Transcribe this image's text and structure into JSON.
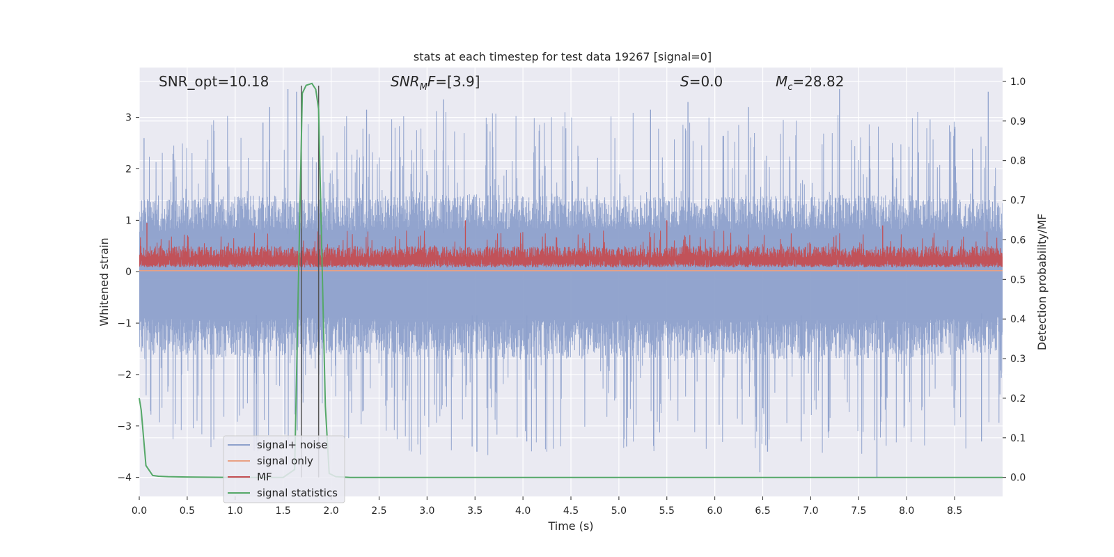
{
  "chart_data": {
    "type": "line",
    "title": "stats at each timestep for test data 19267 [signal=0]",
    "xlabel": "Time (s)",
    "ylabel": "Whitened strain",
    "y2label": "Detection probability/MF",
    "xlim": [
      0.0,
      9.0
    ],
    "ylim": [
      -4.37,
      3.97
    ],
    "y2lim": [
      -0.048,
      1.035
    ],
    "xticks": [
      0.0,
      0.5,
      1.0,
      1.5,
      2.0,
      2.5,
      3.0,
      3.5,
      4.0,
      4.5,
      5.0,
      5.5,
      6.0,
      6.5,
      7.0,
      7.5,
      8.0,
      8.5
    ],
    "xtick_labels": [
      "0.0",
      "0.5",
      "1.0",
      "1.5",
      "2.0",
      "2.5",
      "3.0",
      "3.5",
      "4.0",
      "4.5",
      "5.0",
      "5.5",
      "6.0",
      "6.5",
      "7.0",
      "7.5",
      "8.0",
      "8.5"
    ],
    "yticks": [
      -4,
      -3,
      -2,
      -1,
      0,
      1,
      2,
      3
    ],
    "ytick_labels": [
      "−4",
      "−3",
      "−2",
      "−1",
      "0",
      "1",
      "2",
      "3"
    ],
    "y2ticks": [
      0.0,
      0.1,
      0.2,
      0.3,
      0.4,
      0.5,
      0.6,
      0.7,
      0.8,
      0.9,
      1.0
    ],
    "y2tick_labels": [
      "0.0",
      "0.1",
      "0.2",
      "0.3",
      "0.4",
      "0.5",
      "0.6",
      "0.7",
      "0.8",
      "0.9",
      "1.0"
    ],
    "grid": true,
    "legend_position": "lower-left",
    "annotations": [
      {
        "id": "snr-opt",
        "text": "SNR_opt=10.18"
      },
      {
        "id": "snr-mf",
        "text": "=[3.9]",
        "math_main": "SNR",
        "math_sub": "M",
        "math_tail": "F"
      },
      {
        "id": "s-value",
        "text": "=0.0",
        "math_main": "S"
      },
      {
        "id": "mc-value",
        "text": "=28.82",
        "math_main": "M",
        "math_sub": "c"
      }
    ],
    "vlines": [
      1.69,
      1.87
    ],
    "series": [
      {
        "name": "signal+ noise",
        "color": "#8da0cb",
        "axis": "left",
        "style": "dense-noise",
        "upper_envelope": {
          "x": [
            0.0,
            1.0,
            2.0,
            3.0,
            4.0,
            5.0,
            6.0,
            7.0,
            8.0,
            9.0
          ],
          "y": [
            1.4,
            1.5,
            1.45,
            1.5,
            1.5,
            1.5,
            1.45,
            1.5,
            1.5,
            1.4
          ]
        },
        "lower_envelope": {
          "x": [
            0.0,
            1.0,
            2.0,
            3.0,
            4.0,
            5.0,
            6.0,
            7.0,
            8.0,
            9.0
          ],
          "y": [
            -1.6,
            -1.7,
            -1.6,
            -1.7,
            -1.7,
            -1.7,
            -1.7,
            -1.7,
            -1.7,
            -1.6
          ]
        },
        "peaks": [
          {
            "x": 0.05,
            "y": 2.6
          },
          {
            "x": 1.29,
            "y": 2.9
          },
          {
            "x": 1.36,
            "y": 3.2
          },
          {
            "x": 1.55,
            "y": 3.55
          },
          {
            "x": 1.64,
            "y": 3.5
          },
          {
            "x": 2.37,
            "y": 3.15
          },
          {
            "x": 3.17,
            "y": 3.35
          },
          {
            "x": 5.33,
            "y": 3.15
          },
          {
            "x": 5.72,
            "y": 3.3
          },
          {
            "x": 6.35,
            "y": 3.2
          },
          {
            "x": 7.3,
            "y": 3.55
          },
          {
            "x": 8.85,
            "y": 3.5
          },
          {
            "x": 1.22,
            "y": -3.4
          },
          {
            "x": 3.47,
            "y": -3.4
          },
          {
            "x": 3.52,
            "y": -3.5
          },
          {
            "x": 4.04,
            "y": -3.3
          },
          {
            "x": 5.08,
            "y": -3.4
          },
          {
            "x": 6.47,
            "y": -3.9
          },
          {
            "x": 6.55,
            "y": -3.5
          },
          {
            "x": 6.9,
            "y": -3.3
          },
          {
            "x": 7.69,
            "y": -4.0
          },
          {
            "x": 8.78,
            "y": -3.3
          }
        ]
      },
      {
        "name": "signal only",
        "color": "#e9a083",
        "axis": "left",
        "x": [
          0.0,
          9.0
        ],
        "y": [
          0.02,
          0.02
        ]
      },
      {
        "name": "MF",
        "color": "#c44e52",
        "axis": "left",
        "style": "dense-noise",
        "upper_envelope": {
          "x": [
            0.0,
            1.0,
            2.0,
            3.0,
            4.0,
            5.0,
            6.0,
            7.0,
            8.0,
            9.0
          ],
          "y": [
            0.5,
            0.5,
            0.5,
            0.5,
            0.5,
            0.5,
            0.5,
            0.5,
            0.5,
            0.5
          ]
        },
        "lower_envelope": {
          "x": [
            0.0,
            1.0,
            2.0,
            3.0,
            4.0,
            5.0,
            6.0,
            7.0,
            8.0,
            9.0
          ],
          "y": [
            0.15,
            0.15,
            0.15,
            0.15,
            0.15,
            0.15,
            0.15,
            0.15,
            0.15,
            0.15
          ]
        },
        "peaks": [
          {
            "x": 0.08,
            "y": 0.95
          },
          {
            "x": 3.4,
            "y": 1.0
          },
          {
            "x": 5.5,
            "y": 1.0
          },
          {
            "x": 7.75,
            "y": 0.9
          }
        ]
      },
      {
        "name": "signal statistics",
        "color": "#55a868",
        "axis": "right",
        "x": [
          0.0,
          0.02,
          0.07,
          0.14,
          0.2,
          0.3,
          0.5,
          1.0,
          1.5,
          1.62,
          1.66,
          1.7,
          1.74,
          1.8,
          1.84,
          1.87,
          1.9,
          1.94,
          1.98,
          2.05,
          2.2,
          9.0
        ],
        "y": [
          0.2,
          0.17,
          0.03,
          0.005,
          0.003,
          0.002,
          0.001,
          0.0,
          0.0,
          0.02,
          0.5,
          0.97,
          0.99,
          0.995,
          0.98,
          0.93,
          0.6,
          0.18,
          0.01,
          0.002,
          0.0,
          0.0
        ]
      }
    ]
  }
}
